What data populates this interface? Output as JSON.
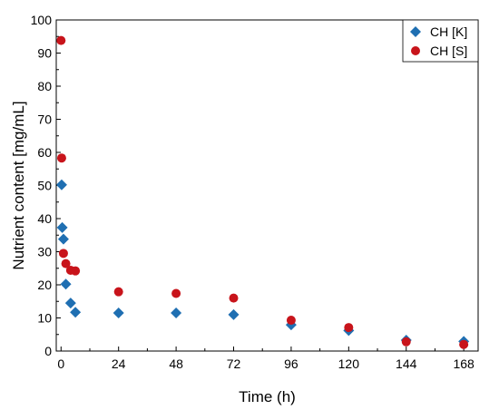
{
  "chart_data": {
    "type": "scatter",
    "title": "",
    "xlabel": "Time (h)",
    "ylabel": "Nutrient content [mg/mL]",
    "xlim": [
      -2,
      174
    ],
    "ylim": [
      0,
      100
    ],
    "xticks": [
      0,
      24,
      48,
      72,
      96,
      120,
      144,
      168
    ],
    "yticks": [
      0,
      10,
      20,
      30,
      40,
      50,
      60,
      70,
      80,
      90,
      100
    ],
    "grid": false,
    "legend_position": "top-right",
    "series": [
      {
        "name": "CH [K]",
        "marker": "diamond",
        "color": "#1f6fb2",
        "points": [
          {
            "x": 0.25,
            "y": 50.2
          },
          {
            "x": 0.5,
            "y": 37.3
          },
          {
            "x": 1,
            "y": 33.8
          },
          {
            "x": 2,
            "y": 20.2
          },
          {
            "x": 4,
            "y": 14.5
          },
          {
            "x": 6,
            "y": 11.7
          },
          {
            "x": 24,
            "y": 11.5
          },
          {
            "x": 48,
            "y": 11.5
          },
          {
            "x": 72,
            "y": 11.0
          },
          {
            "x": 96,
            "y": 7.9
          },
          {
            "x": 120,
            "y": 6.2
          },
          {
            "x": 144,
            "y": 3.3
          },
          {
            "x": 168,
            "y": 2.9
          }
        ]
      },
      {
        "name": "CH [S]",
        "marker": "circle",
        "color": "#c8141b",
        "points": [
          {
            "x": 0,
            "y": 93.8
          },
          {
            "x": 0.25,
            "y": 58.3
          },
          {
            "x": 1,
            "y": 29.5
          },
          {
            "x": 2,
            "y": 26.4
          },
          {
            "x": 4,
            "y": 24.4
          },
          {
            "x": 6,
            "y": 24.2
          },
          {
            "x": 24,
            "y": 17.9
          },
          {
            "x": 48,
            "y": 17.4
          },
          {
            "x": 72,
            "y": 16.0
          },
          {
            "x": 96,
            "y": 9.3
          },
          {
            "x": 120,
            "y": 7.1
          },
          {
            "x": 144,
            "y": 2.8
          },
          {
            "x": 168,
            "y": 2.0
          }
        ]
      }
    ]
  }
}
